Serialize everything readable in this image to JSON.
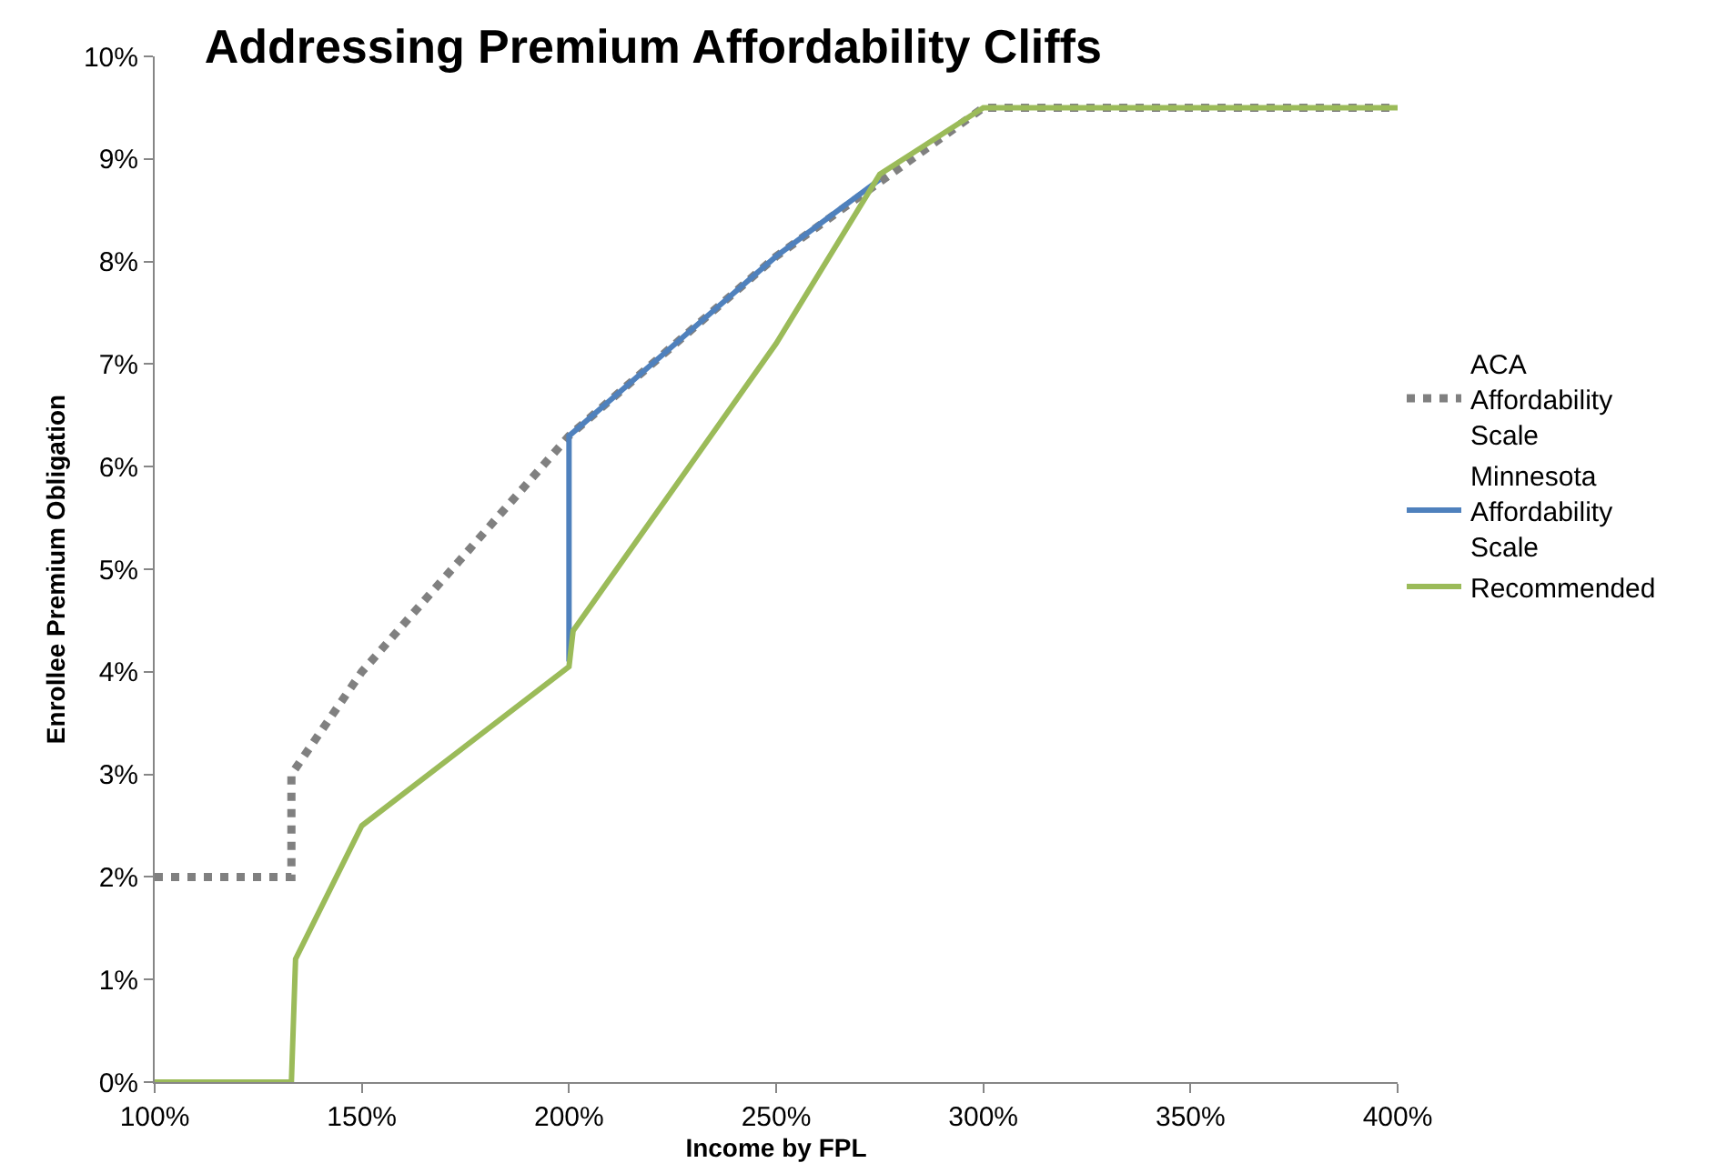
{
  "chart_data": {
    "type": "line",
    "title": "Addressing Premium Affordability Cliffs",
    "xlabel": "Income by FPL",
    "ylabel": "Enrollee Premium Obligation",
    "series": [
      {
        "name": "ACA Affordability Scale",
        "color": "#808080",
        "line_style": "dotted",
        "x": [
          100,
          133,
          133,
          150,
          200,
          250,
          300,
          400
        ],
        "values": [
          2,
          2,
          3,
          4,
          6.3,
          8.05,
          9.5,
          9.5
        ]
      },
      {
        "name": "Minnesota Affordability Scale",
        "color": "#4f81bd",
        "line_style": "solid",
        "x": [
          200,
          200,
          250,
          275
        ],
        "values": [
          4.1,
          6.3,
          8.05,
          8.8
        ]
      },
      {
        "name": "Recommended",
        "color": "#9bbb59",
        "line_style": "solid",
        "x": [
          100,
          133,
          134,
          150,
          200,
          201,
          250,
          275,
          300,
          400
        ],
        "values": [
          0,
          0,
          1.2,
          2.5,
          4.05,
          4.4,
          7.2,
          8.85,
          9.5,
          9.5
        ]
      }
    ],
    "xlim": [
      100,
      400
    ],
    "ylim": [
      0,
      10
    ],
    "xticks": [
      {
        "value": 100,
        "label": "100%"
      },
      {
        "value": 150,
        "label": "150%"
      },
      {
        "value": 200,
        "label": "200%"
      },
      {
        "value": 250,
        "label": "250%"
      },
      {
        "value": 300,
        "label": "300%"
      },
      {
        "value": 350,
        "label": "350%"
      },
      {
        "value": 400,
        "label": "400%"
      }
    ],
    "yticks": [
      {
        "value": 0,
        "label": "0%"
      },
      {
        "value": 1,
        "label": "1%"
      },
      {
        "value": 2,
        "label": "2%"
      },
      {
        "value": 3,
        "label": "3%"
      },
      {
        "value": 4,
        "label": "4%"
      },
      {
        "value": 5,
        "label": "5%"
      },
      {
        "value": 6,
        "label": "6%"
      },
      {
        "value": 7,
        "label": "7%"
      },
      {
        "value": 8,
        "label": "8%"
      },
      {
        "value": 9,
        "label": "9%"
      },
      {
        "value": 10,
        "label": "10%"
      }
    ],
    "legend": "right",
    "marker": "none"
  }
}
